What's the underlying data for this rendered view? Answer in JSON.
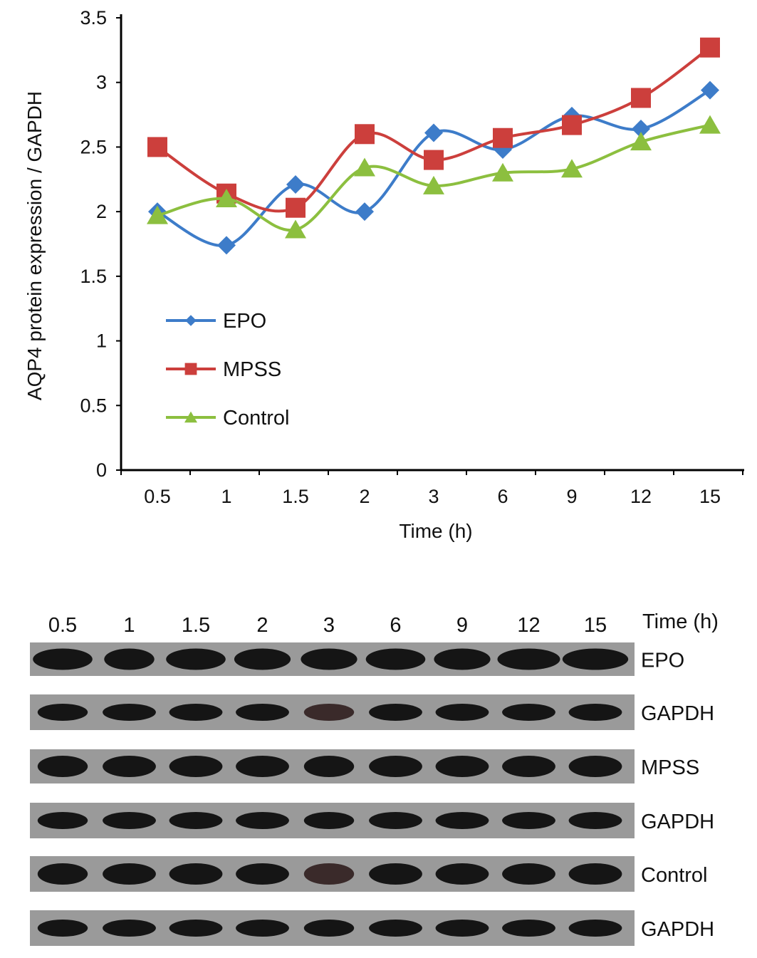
{
  "chart_data": {
    "type": "line",
    "title": "",
    "xlabel": "Time (h)",
    "ylabel": "AQP4 protein expression / GAPDH",
    "ylim": [
      0,
      3.5
    ],
    "yticks": [
      "0",
      "0.5",
      "1",
      "1.5",
      "2",
      "2.5",
      "3",
      "3.5"
    ],
    "categories": [
      "0.5",
      "1",
      "1.5",
      "2",
      "3",
      "6",
      "9",
      "12",
      "15"
    ],
    "grid": false,
    "legend": "lower-left",
    "series": [
      {
        "name": "EPO",
        "color": "#3d7cc9",
        "marker": "diamond",
        "values": [
          2.0,
          1.74,
          2.21,
          2.0,
          2.61,
          2.48,
          2.74,
          2.64,
          2.94
        ]
      },
      {
        "name": "MPSS",
        "color": "#cc3f3c",
        "marker": "square",
        "values": [
          2.5,
          2.14,
          2.03,
          2.6,
          2.4,
          2.57,
          2.67,
          2.88,
          3.27
        ]
      },
      {
        "name": "Control",
        "color": "#8cbf3f",
        "marker": "triangle",
        "values": [
          1.97,
          2.1,
          1.86,
          2.34,
          2.2,
          2.3,
          2.33,
          2.54,
          2.67
        ]
      }
    ]
  },
  "blot": {
    "time_label": "Time (h)",
    "lanes": [
      "0.5",
      "1",
      "1.5",
      "2",
      "3",
      "6",
      "9",
      "12",
      "15"
    ],
    "rows": [
      "EPO",
      "GAPDH",
      "MPSS",
      "GAPDH",
      "Control",
      "GAPDH"
    ]
  }
}
